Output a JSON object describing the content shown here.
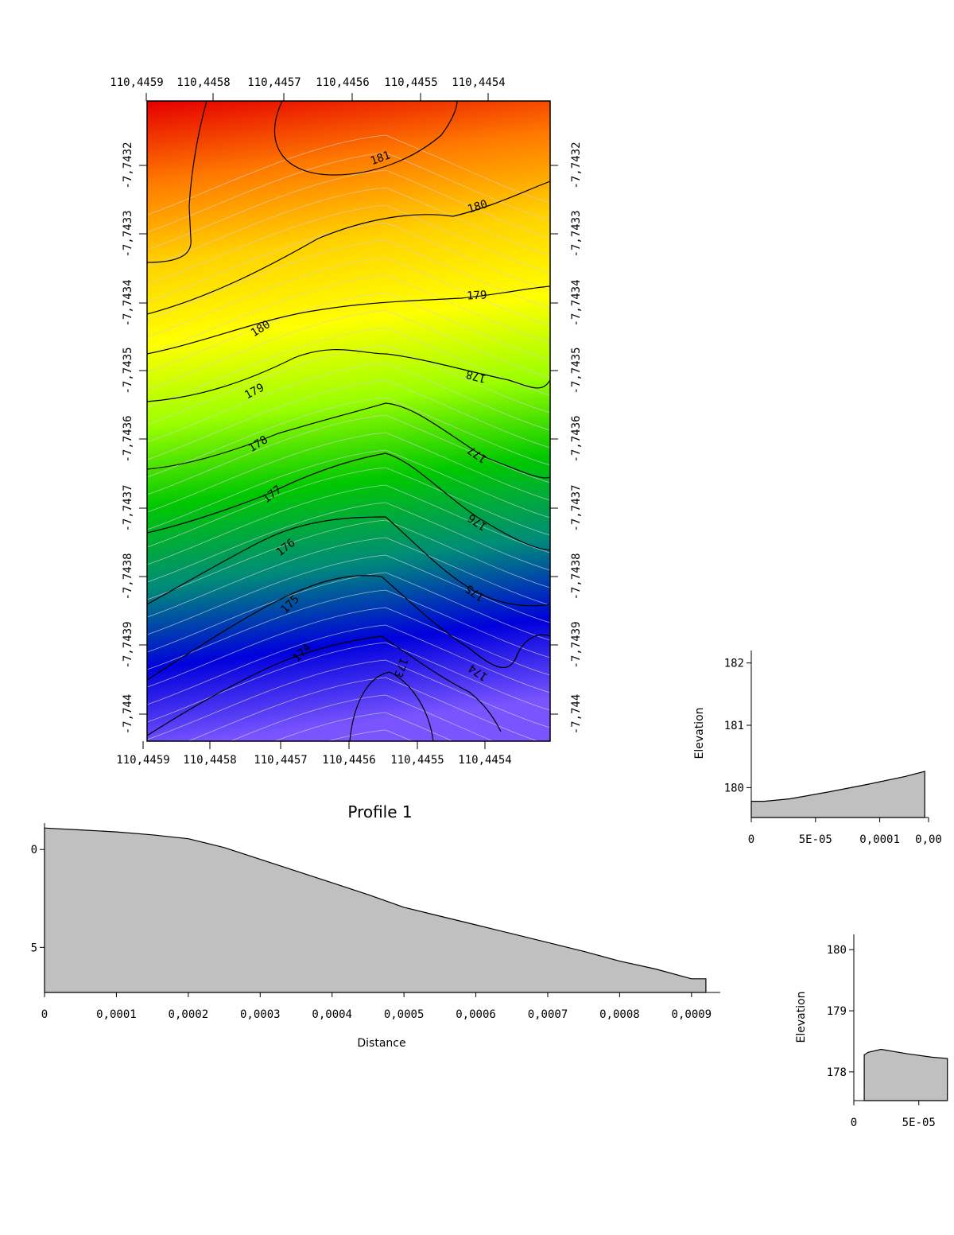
{
  "chart_data": [
    {
      "type": "heatmap",
      "subtype": "contour map",
      "x_tick_labels": [
        "110,4459",
        "110,4458",
        "110,4457",
        "110,4456",
        "110,4455",
        "110,4454"
      ],
      "y_tick_labels": [
        "-7,7432",
        "-7,7433",
        "-7,7434",
        "-7,7435",
        "-7,7436",
        "-7,7437",
        "-7,7438",
        "-7,7439",
        "-7,744"
      ],
      "colormap": [
        "#e60000",
        "#ff7a00",
        "#ffd200",
        "#ffff00",
        "#9cff00",
        "#00c800",
        "#008c78",
        "#0000dc",
        "#7a55ff"
      ],
      "contour_labels": [
        "181",
        "180",
        "179",
        "180",
        "179",
        "178",
        "178",
        "177",
        "177",
        "176",
        "176",
        "175",
        "175",
        "174",
        "174",
        "173"
      ],
      "z_range": [
        172.7,
        182.3
      ]
    },
    {
      "type": "area",
      "title": "Profile 1",
      "xlabel": "Distance",
      "y_tick_labels": [
        "0",
        "5"
      ],
      "x_tick_labels": [
        "0",
        "0,0001",
        "0,0002",
        "0,0003",
        "0,0004",
        "0,0005",
        "0,0006",
        "0,0007",
        "0,0008",
        "0,0009"
      ],
      "x": [
        0,
        5e-05,
        0.0001,
        0.00015,
        0.0002,
        0.00025,
        0.0003,
        0.00035,
        0.0004,
        0.00045,
        0.0005,
        0.00055,
        0.0006,
        0.00065,
        0.0007,
        0.00075,
        0.0008,
        0.00085,
        0.0009,
        0.00092
      ],
      "y": [
        181.1,
        181.0,
        180.9,
        180.75,
        180.55,
        180.1,
        179.5,
        178.9,
        178.3,
        177.7,
        177.05,
        176.6,
        176.15,
        175.7,
        175.25,
        174.8,
        174.3,
        173.9,
        173.4,
        173.4
      ]
    },
    {
      "type": "area",
      "ylabel": "Elevation",
      "y_tick_labels": [
        "182",
        "181",
        "180"
      ],
      "x_tick_labels": [
        "0",
        "5E-05",
        "0,0001",
        "0,00"
      ],
      "x": [
        0,
        1e-05,
        3e-05,
        6e-05,
        9e-05,
        0.00012,
        0.000135
      ],
      "y": [
        179.78,
        179.78,
        179.82,
        179.93,
        180.05,
        180.18,
        180.26
      ]
    },
    {
      "type": "area",
      "ylabel": "Elevation",
      "y_tick_labels": [
        "180",
        "179",
        "178"
      ],
      "x_tick_labels": [
        "0",
        "5E-05"
      ],
      "x": [
        8e-06,
        1.1e-05,
        2.1e-05,
        4e-05,
        6e-05,
        7.2e-05
      ],
      "y": [
        178.28,
        178.32,
        178.37,
        178.3,
        178.24,
        178.22
      ]
    }
  ]
}
